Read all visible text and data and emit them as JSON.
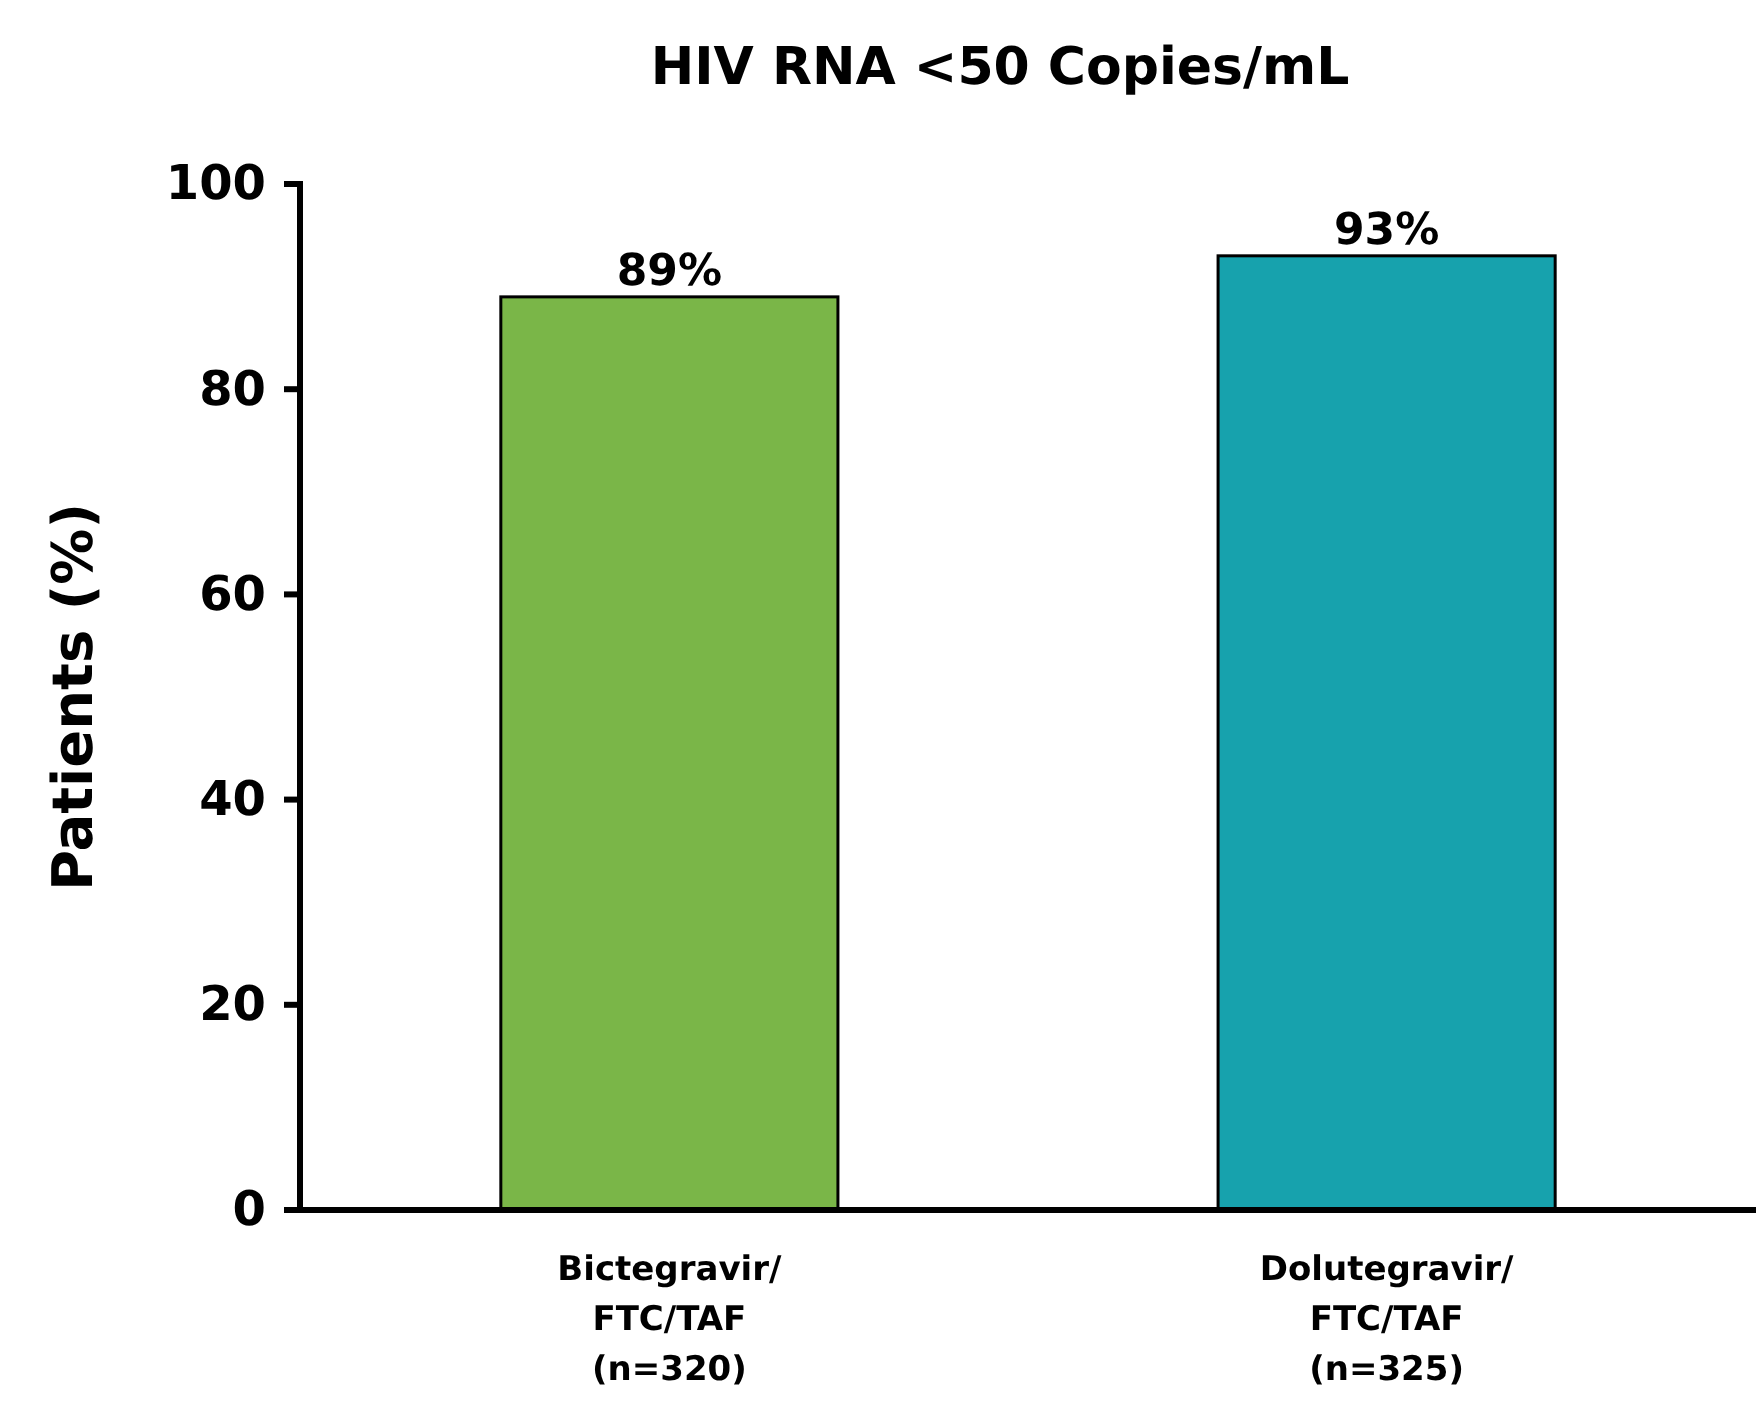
{
  "chart_data": {
    "type": "bar",
    "title": "HIV RNA <50 Copies/mL",
    "ylabel": "Patients (%)",
    "categories": [
      "Bictegravir/\nFTC/TAF\n(n=320)",
      "Dolutegravir/\nFTC/TAF\n(n=325)"
    ],
    "values": [
      89,
      93
    ],
    "colors": [
      "#7ab648",
      "#17a2ad"
    ],
    "value_labels": [
      "89%",
      "93%"
    ],
    "ylim": [
      0,
      100
    ],
    "yticks": [
      0,
      20,
      40,
      60,
      80,
      100
    ]
  }
}
